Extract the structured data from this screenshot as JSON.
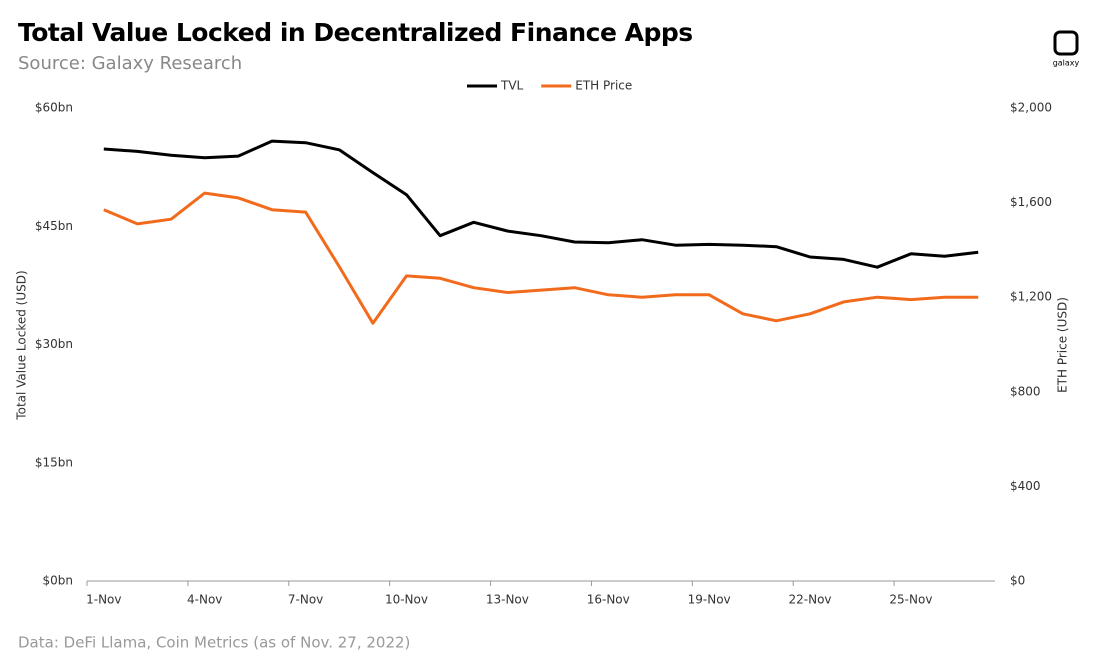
{
  "chart_data": {
    "type": "line",
    "title": "Total Value Locked in Decentralized Finance Apps",
    "subtitle": "Source: Galaxy Research",
    "source": "Data: DeFi Llama, Coin Metrics (as of Nov. 27, 2022)",
    "brand": "galaxy",
    "y_label": "Total Value Locked (USD)",
    "y2_label": "ETH Price (USD)",
    "categories": [
      "1-Nov",
      null,
      null,
      "4-Nov",
      null,
      null,
      "7-Nov",
      null,
      null,
      "10-Nov",
      null,
      null,
      "13-Nov",
      null,
      null,
      "16-Nov",
      null,
      null,
      "19-Nov",
      null,
      null,
      "22-Nov",
      null,
      null,
      "25-Nov",
      null,
      null
    ],
    "series": [
      {
        "name": "TVL",
        "color": "#000000",
        "values": [
          54.8,
          54.5,
          54.0,
          53.7,
          53.9,
          55.8,
          55.6,
          54.7,
          51.8,
          49.0,
          43.8,
          45.5,
          44.4,
          43.8,
          43.0,
          42.9,
          43.3,
          42.6,
          42.7,
          42.6,
          42.4,
          41.1,
          40.8,
          39.8,
          41.5,
          41.2,
          41.7
        ]
      },
      {
        "name": "ETH Price",
        "color": "#f26b1d",
        "axis": "y2",
        "values": [
          1570,
          1510,
          1530,
          1640,
          1620,
          1570,
          1560,
          1330,
          1090,
          1290,
          1280,
          1240,
          1220,
          1230,
          1240,
          1210,
          1200,
          1210,
          1210,
          1130,
          1100,
          1130,
          1180,
          1200,
          1190,
          1200,
          1200
        ]
      }
    ],
    "ylim": [
      0,
      60
    ],
    "yticks": [
      {
        "value": 0,
        "label": "$0bn"
      },
      {
        "value": 15,
        "label": "$15bn"
      },
      {
        "value": 30,
        "label": "$30bn"
      },
      {
        "value": 45,
        "label": "$45bn"
      },
      {
        "value": 60,
        "label": "$60bn"
      }
    ],
    "y2lim": [
      0,
      2000
    ],
    "y2ticks": [
      {
        "value": 0,
        "label": "$0"
      },
      {
        "value": 400,
        "label": "$400"
      },
      {
        "value": 800,
        "label": "$800"
      },
      {
        "value": 1200,
        "label": "$1,200"
      },
      {
        "value": 1600,
        "label": "$1,600"
      },
      {
        "value": 2000,
        "label": "$2,000"
      }
    ],
    "legend": "top"
  }
}
